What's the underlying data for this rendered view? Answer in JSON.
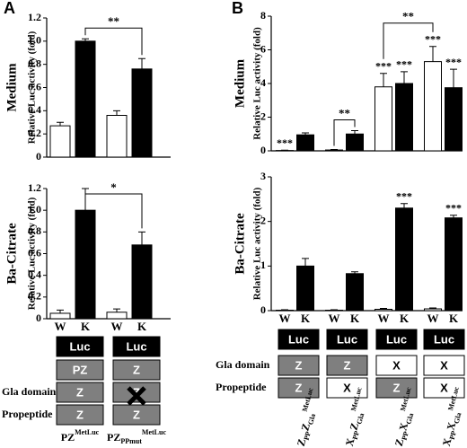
{
  "panels": [
    {
      "label": "A"
    },
    {
      "label": "B"
    }
  ],
  "chart_data": [
    {
      "type": "bar",
      "row_label": "Medium",
      "y_label": "Relative Luc activity (fold)",
      "values": [
        0.27,
        1.0,
        0.36,
        0.76
      ],
      "errors": [
        0.03,
        0.02,
        0.04,
        0.09
      ],
      "colors": [
        "#ffffff",
        "#000000",
        "#ffffff",
        "#000000"
      ],
      "ylim": [
        0,
        1.2
      ],
      "yticks": [
        0,
        0.2,
        0.4,
        0.6,
        0.8,
        {
          "value": 1,
          "label": "1.0"
        },
        1.2
      ],
      "annotations": [
        {
          "text": "**",
          "from": 1,
          "to": 3
        }
      ]
    },
    {
      "type": "bar",
      "row_label": "Ba-Citrate",
      "y_label": "Relative Luc activity (fold)",
      "categories": [
        "W",
        "K",
        "W",
        "K"
      ],
      "values": [
        0.05,
        1.0,
        0.06,
        0.68
      ],
      "errors": [
        0.03,
        0.2,
        0.03,
        0.12
      ],
      "colors": [
        "#ffffff",
        "#000000",
        "#ffffff",
        "#000000"
      ],
      "ylim": [
        0,
        1.2
      ],
      "yticks": [
        0,
        0.2,
        0.4,
        0.6,
        0.8,
        {
          "value": 1,
          "label": "1.0"
        },
        1.2
      ],
      "annotations": [
        {
          "text": "*",
          "from": 1,
          "to": 3
        }
      ]
    },
    {
      "type": "bar",
      "row_label": "Medium",
      "y_label": "Relative Luc activity (fold)",
      "values": [
        0.02,
        0.95,
        0.05,
        1.0,
        3.8,
        4.0,
        5.3,
        3.75
      ],
      "errors": [
        0.02,
        0.12,
        0.03,
        0.2,
        0.8,
        0.7,
        0.9,
        1.1
      ],
      "colors": [
        "#ffffff",
        "#000000",
        "#ffffff",
        "#000000",
        "#ffffff",
        "#000000",
        "#ffffff",
        "#000000"
      ],
      "bar_labels": [
        "***",
        null,
        null,
        null,
        "***",
        "***",
        "***",
        "***"
      ],
      "ylim": [
        0,
        8
      ],
      "yticks": [
        0,
        2,
        4,
        6,
        8
      ],
      "annotations": [
        {
          "text": "**",
          "from": 2,
          "to": 3
        },
        {
          "text": "**",
          "from": 4,
          "to": 6
        }
      ]
    },
    {
      "type": "bar",
      "row_label": "Ba-Citrate",
      "y_label": "Relative Luc activity (fold)",
      "categories": [
        "W",
        "K",
        "W",
        "K",
        "W",
        "K",
        "W",
        "K"
      ],
      "values": [
        0.01,
        1.0,
        0.01,
        0.83,
        0.03,
        2.3,
        0.04,
        2.08
      ],
      "errors": [
        0.01,
        0.17,
        0.01,
        0.04,
        0.02,
        0.1,
        0.02,
        0.06
      ],
      "colors": [
        "#ffffff",
        "#000000",
        "#ffffff",
        "#000000",
        "#ffffff",
        "#000000",
        "#ffffff",
        "#000000"
      ],
      "bar_labels": [
        null,
        null,
        null,
        null,
        null,
        "***",
        null,
        "***"
      ],
      "ylim": [
        0,
        3
      ],
      "yticks": [
        0,
        1,
        2,
        3
      ]
    }
  ],
  "diagrams": [
    {
      "row_labels": [
        "Gla domain",
        "Propeptide"
      ],
      "constructs": [
        {
          "boxes": [
            "Luc",
            "PZ",
            "Z",
            "Z"
          ],
          "name": [
            {
              "t": "PZ"
            },
            {
              "t": "MetLuc",
              "s": "sup"
            }
          ]
        },
        {
          "boxes": [
            "Luc",
            "Z",
            "Z",
            "Z"
          ],
          "name": [
            {
              "t": "PZ"
            },
            {
              "t": "PPmut",
              "s": "sub"
            },
            {
              "t": "MetLuc",
              "s": "sup"
            }
          ]
        }
      ]
    },
    {
      "row_labels": [
        "Gla domain",
        "Propeptide"
      ],
      "constructs": [
        {
          "boxes": [
            "Luc",
            "Z",
            "Z"
          ],
          "name": [
            {
              "t": "Z"
            },
            {
              "t": "PP",
              "s": "sub"
            },
            {
              "t": "Z"
            },
            {
              "t": "Gla",
              "s": "sub"
            },
            {
              "t": "MetLuc",
              "s": "sup"
            }
          ]
        },
        {
          "boxes": [
            "Luc",
            "Z",
            "X"
          ],
          "name": [
            {
              "t": "X"
            },
            {
              "t": "PP",
              "s": "sub"
            },
            {
              "t": "Z"
            },
            {
              "t": "Gla",
              "s": "sub"
            },
            {
              "t": "MetLuc",
              "s": "sup"
            }
          ]
        },
        {
          "boxes": [
            "Luc",
            "X",
            "Z"
          ],
          "name": [
            {
              "t": "Z"
            },
            {
              "t": "PP",
              "s": "sub"
            },
            {
              "t": "X"
            },
            {
              "t": "Gla",
              "s": "sub"
            },
            {
              "t": "MetLuc",
              "s": "sup"
            }
          ]
        },
        {
          "boxes": [
            "Luc",
            "X",
            "X"
          ],
          "name": [
            {
              "t": "X"
            },
            {
              "t": "PP",
              "s": "sub"
            },
            {
              "t": "X"
            },
            {
              "t": "Gla",
              "s": "sub"
            },
            {
              "t": "MetLuc",
              "s": "sup"
            }
          ]
        }
      ]
    }
  ]
}
